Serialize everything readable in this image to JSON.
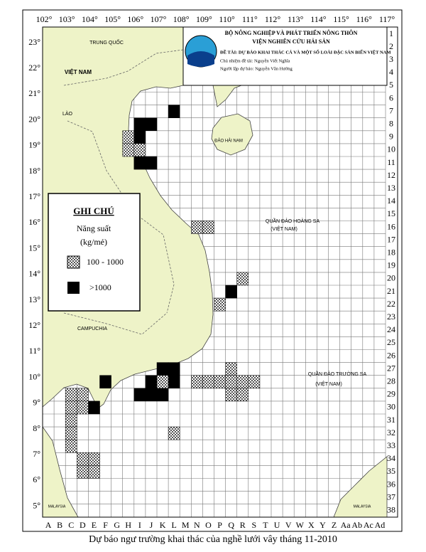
{
  "header": {
    "ministry": "BỘ NÔNG NGHIỆP VÀ PHÁT TRIỂN NÔNG THÔN",
    "institute": "VIỆN NGHIÊN CỨU HẢI SẢN",
    "project": "ĐỀ TÀI: DỰ BÁO KHAI THÁC CÁ VÀ MỘT SỐ LOÀI ĐẶC SẢN BIỂN VIỆT NAM",
    "leader": "Chủ nhiệm đề tài: Nguyễn Viết Nghĩa",
    "forecaster": "Người lập dự báo: Nguyễn Văn Hướng"
  },
  "legend": {
    "title": "GHI CHÚ",
    "measure": "Năng suất",
    "unit": "(kg/mẻ)",
    "classes": [
      "100 - 1000",
      ">1000"
    ]
  },
  "longitudes": [
    "102°",
    "103°",
    "104°",
    "105°",
    "106°",
    "107°",
    "108°",
    "109°",
    "110°",
    "111°",
    "112°",
    "113°",
    "114°",
    "115°",
    "116°",
    "117°"
  ],
  "latitudes": [
    "23°",
    "22°",
    "21°",
    "20°",
    "19°",
    "18°",
    "17°",
    "16°",
    "15°",
    "14°",
    "13°",
    "12°",
    "11°",
    "10°",
    "9°",
    "8°",
    "7°",
    "6°",
    "5°"
  ],
  "columns": [
    "A",
    "B",
    "C",
    "D",
    "E",
    "F",
    "G",
    "H",
    "I",
    "J",
    "K",
    "L",
    "M",
    "N",
    "O",
    "P",
    "Q",
    "R",
    "S",
    "T",
    "U",
    "V",
    "W",
    "X",
    "Y",
    "Z",
    "Aa",
    "Ab",
    "Ac",
    "Ad"
  ],
  "rows": [
    1,
    2,
    3,
    4,
    5,
    6,
    7,
    8,
    9,
    10,
    11,
    12,
    13,
    14,
    15,
    16,
    17,
    18,
    19,
    20,
    21,
    22,
    23,
    24,
    25,
    26,
    27,
    28,
    29,
    30,
    31,
    32,
    33,
    34,
    35,
    36,
    37,
    38
  ],
  "places": [
    "TRUNG QUỐC",
    "VIỆT NAM",
    "LÀO",
    "CAMPUCHIA",
    "ĐẢO HẢI NAM",
    "QUẦN ĐẢO HOÀNG SA",
    "(VIỆT NAM)",
    "QUẦN ĐẢO TRƯỜNG SA",
    "(VIỆT NAM)",
    "MALAYSIA",
    "MALAYSIA"
  ],
  "caption": "Dự báo ngư trường khai thác của nghề lưới vây tháng 11-2010"
}
